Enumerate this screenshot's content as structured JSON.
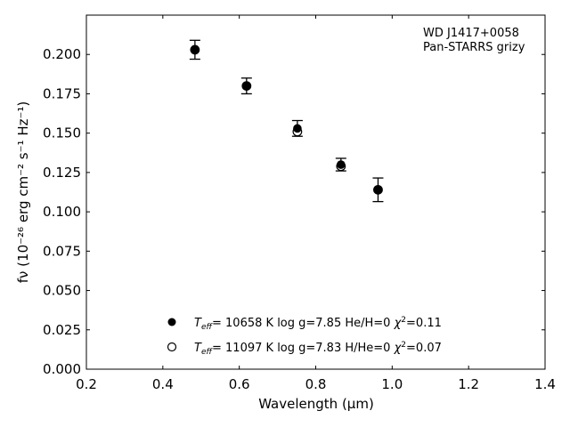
{
  "chart_data": {
    "type": "scatter",
    "annotation": [
      "WD J1417+0058",
      "Pan-STARRS grizy"
    ],
    "xlabel": "Wavelength (μm)",
    "ylabel": "fν (10⁻²⁶ erg cm⁻² s⁻¹ Hz⁻¹)",
    "xlim": [
      0.2,
      1.4
    ],
    "ylim": [
      0.0,
      0.225
    ],
    "xticks": [
      "0.2",
      "0.4",
      "0.6",
      "0.8",
      "1.0",
      "1.2",
      "1.4"
    ],
    "yticks": [
      "0.000",
      "0.025",
      "0.050",
      "0.075",
      "0.100",
      "0.125",
      "0.150",
      "0.175",
      "0.200"
    ],
    "grid": false,
    "legend_position": "bottom-center",
    "series": [
      {
        "marker": "filled-circle",
        "x": [
          0.484,
          0.619,
          0.752,
          0.866,
          0.963
        ],
        "y": [
          0.203,
          0.18,
          0.153,
          0.13,
          0.114
        ],
        "yerr": [
          0.006,
          0.005,
          0.005,
          0.004,
          0.0075
        ]
      },
      {
        "marker": "open-circle",
        "x": [
          0.484,
          0.619,
          0.752,
          0.866,
          0.963
        ],
        "y": [
          0.203,
          0.18,
          0.151,
          0.129,
          0.114
        ]
      }
    ],
    "legend": [
      {
        "marker": "filled-circle",
        "teff": "= 10658 K",
        "rest": "log g=7.85  He/H=0",
        "chi": "=0.11"
      },
      {
        "marker": "open-circle",
        "teff": "= 11097 K",
        "rest": "log g=7.83  H/He=0",
        "chi": "=0.07"
      }
    ]
  }
}
